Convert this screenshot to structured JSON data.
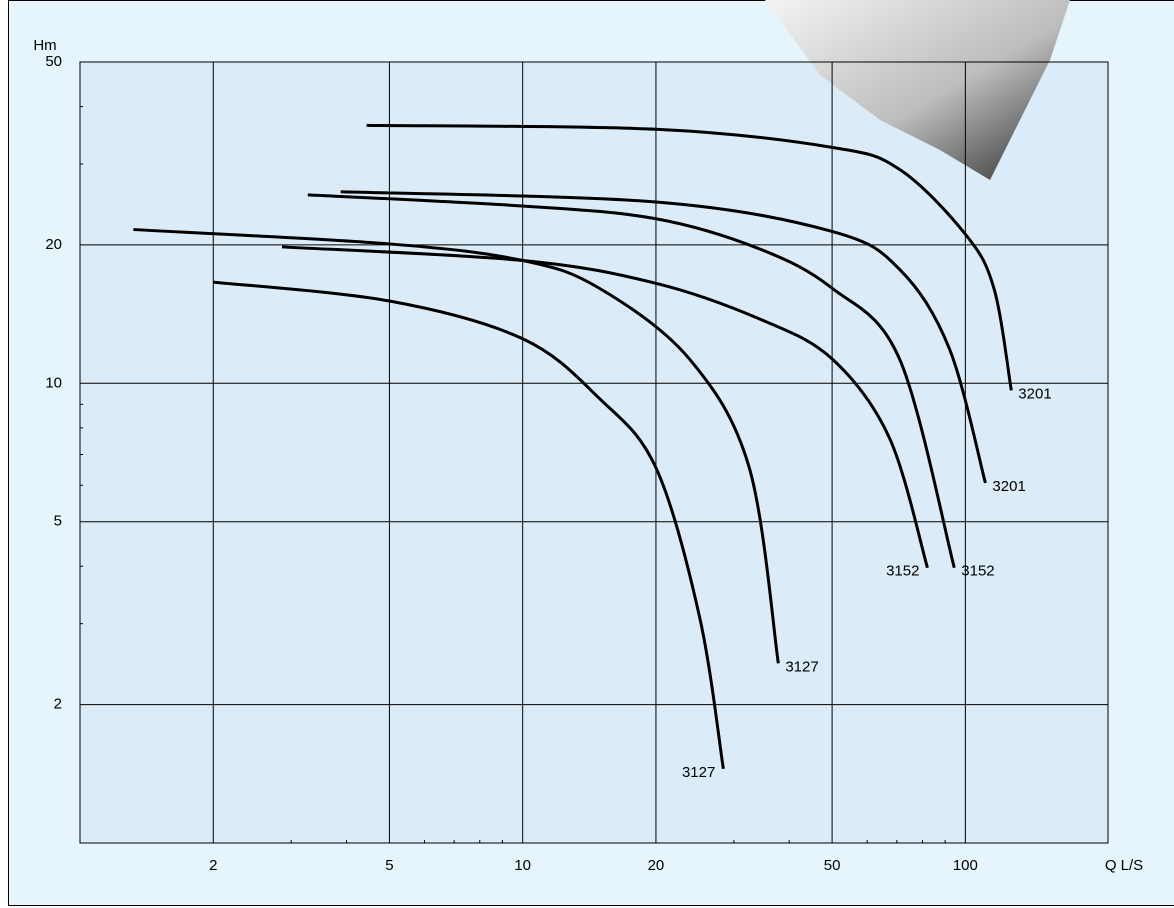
{
  "chart_data": {
    "type": "line",
    "x_label": "Q L/S",
    "y_label": "Hm",
    "xlog": true,
    "ylog": true,
    "grid": true,
    "xlim": [
      1,
      210
    ],
    "ylim": [
      1,
      50
    ],
    "xticks": [
      2,
      5,
      10,
      20,
      50,
      100
    ],
    "yticks": [
      2,
      5,
      10,
      20,
      50
    ],
    "xminorticks": [
      3,
      4,
      6,
      7,
      8,
      9,
      30,
      40,
      60,
      70,
      80,
      90
    ],
    "yminorticks": [
      3,
      4,
      6,
      7,
      8,
      9,
      30,
      40
    ],
    "series": [
      {
        "name": "3201",
        "color": "#000000",
        "label_side": "right",
        "x": [
          4.44,
          20,
          50,
          71,
          100,
          116,
          127
        ],
        "values": [
          36.4,
          35.7,
          32.6,
          29.2,
          21.1,
          16.1,
          9.65
        ]
      },
      {
        "name": "3201",
        "color": "#000000",
        "label_side": "right",
        "x": [
          3.88,
          20,
          50,
          71,
          92,
          111
        ],
        "values": [
          26.1,
          24.8,
          21.4,
          17.7,
          11.9,
          6.07
        ]
      },
      {
        "name": "3152",
        "color": "#000000",
        "label_side": "right",
        "x": [
          3.27,
          10,
          20,
          34.3,
          50,
          71,
          94.4
        ],
        "values": [
          25.7,
          24.3,
          22.8,
          19.6,
          16.1,
          11.3,
          3.97
        ]
      },
      {
        "name": "3152",
        "color": "#000000",
        "label_side": "left",
        "x": [
          2.86,
          10,
          20,
          34.3,
          50,
          67.4,
          82.1
        ],
        "values": [
          19.8,
          18.5,
          16.5,
          13.8,
          11.3,
          7.6,
          3.97
        ]
      },
      {
        "name": "3127",
        "color": "#000000",
        "label_side": "right",
        "x": [
          1.32,
          5,
          10,
          14.9,
          23.8,
          32.5,
          37.8
        ],
        "values": [
          21.6,
          20.1,
          18.5,
          16.1,
          11.3,
          6.55,
          2.46
        ]
      },
      {
        "name": "3127",
        "color": "#000000",
        "label_side": "left",
        "x": [
          2,
          5,
          10,
          14.9,
          20,
          25.1,
          28.4
        ],
        "values": [
          16.6,
          15.1,
          12.5,
          9.27,
          6.55,
          3.1,
          1.45
        ]
      }
    ]
  }
}
